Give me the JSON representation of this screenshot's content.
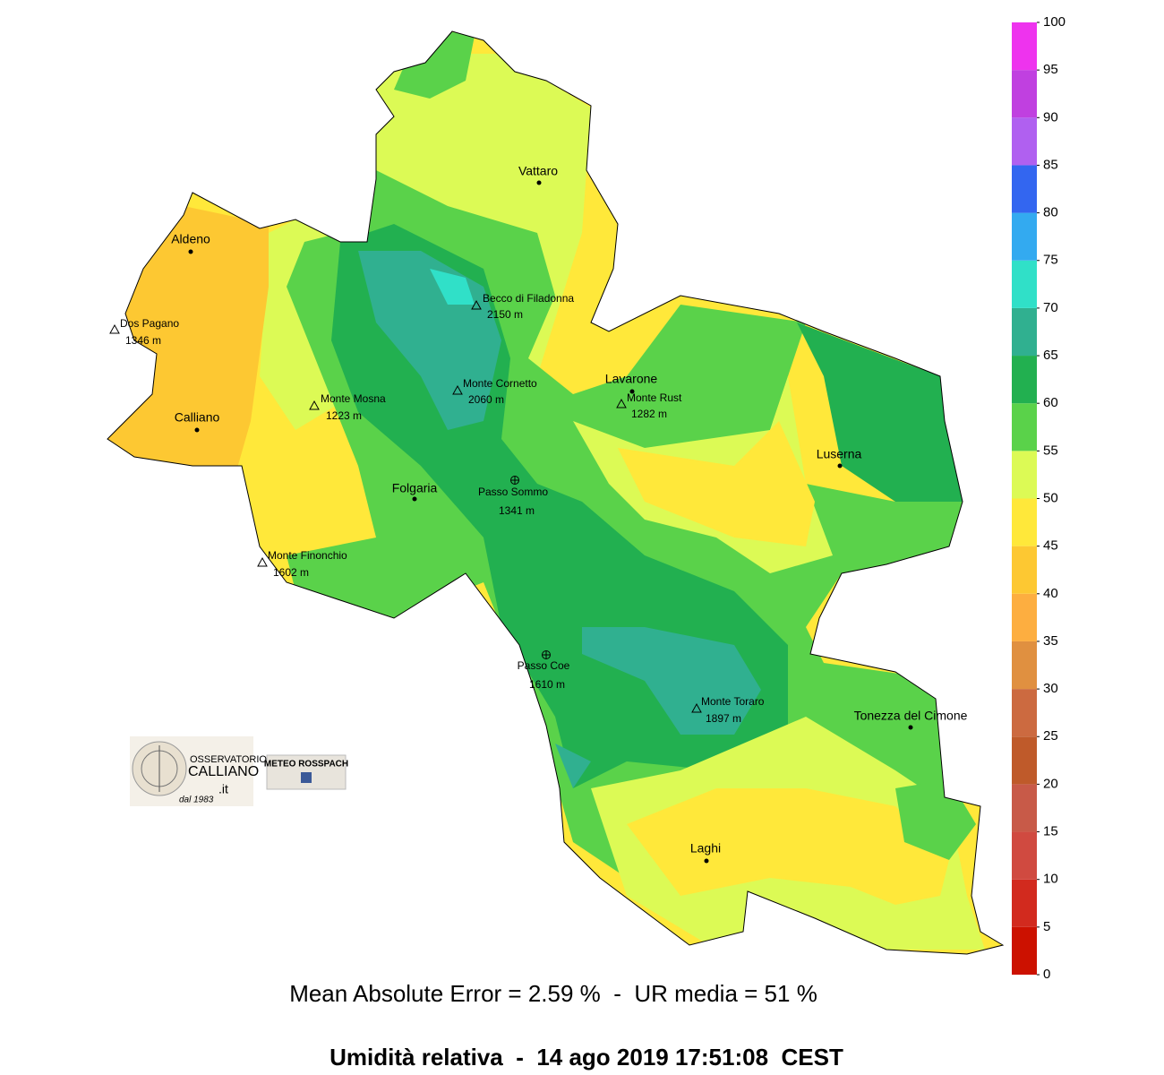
{
  "map": {
    "places": [
      {
        "name": "Vattaro",
        "kind": "town"
      },
      {
        "name": "Aldeno",
        "kind": "town"
      },
      {
        "name": "Calliano",
        "kind": "town"
      },
      {
        "name": "Folgaria",
        "kind": "town"
      },
      {
        "name": "Lavarone",
        "kind": "town"
      },
      {
        "name": "Luserna",
        "kind": "town"
      },
      {
        "name": "Tonezza del Cimone",
        "kind": "town"
      },
      {
        "name": "Laghi",
        "kind": "town"
      },
      {
        "name": "Dos Pagano",
        "kind": "peak",
        "elevation": "1346 m"
      },
      {
        "name": "Becco di Filadonna",
        "kind": "peak",
        "elevation": "2150 m"
      },
      {
        "name": "Monte Mosna",
        "kind": "peak",
        "elevation": "1223 m"
      },
      {
        "name": "Monte Cornetto",
        "kind": "peak",
        "elevation": "2060 m"
      },
      {
        "name": "Monte Rust",
        "kind": "peak",
        "elevation": "1282 m"
      },
      {
        "name": "Monte Finonchio",
        "kind": "peak",
        "elevation": "1602 m"
      },
      {
        "name": "Monte Toraro",
        "kind": "peak",
        "elevation": "1897 m"
      },
      {
        "name": "Passo Sommo",
        "kind": "pass",
        "elevation": "1341 m"
      },
      {
        "name": "Passo Coe",
        "kind": "pass",
        "elevation": "1610 m"
      }
    ],
    "colorbar": {
      "ticks": [
        0,
        5,
        10,
        15,
        20,
        25,
        30,
        35,
        40,
        45,
        50,
        55,
        60,
        65,
        70,
        75,
        80,
        85,
        90,
        95,
        100
      ],
      "colors": [
        "#cc1100",
        "#d22a1e",
        "#d04a40",
        "#c85a48",
        "#bf5a2a",
        "#cc6a40",
        "#e09040",
        "#fdae40",
        "#fdc832",
        "#ffe83a",
        "#dcfa55",
        "#5ad24a",
        "#22b050",
        "#30b090",
        "#30e0c8",
        "#33aaf0",
        "#3366f0",
        "#b060f0",
        "#c040e0",
        "#ee33ee",
        "#ff22aa"
      ]
    }
  },
  "logos": {
    "observatory": [
      "OSSERVATORIO",
      "CALLIANO",
      ".it",
      "dal 1983"
    ],
    "facebook": "METEO ROSSPACH"
  },
  "footer": {
    "stats": "Mean Absolute Error = 2.59 %  -  UR media = 51 %",
    "title": "Umidità relativa  -  14 ago 2019 17:51:08  CEST"
  }
}
